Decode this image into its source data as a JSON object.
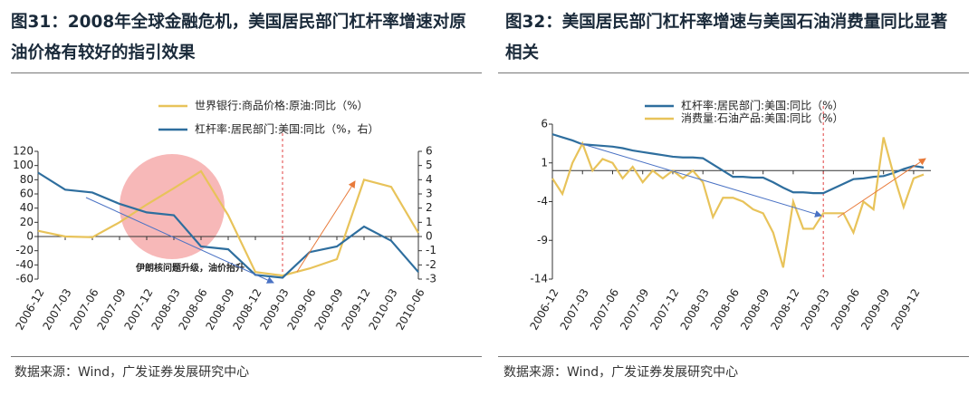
{
  "chart_data": [
    {
      "type": "line",
      "title": "图31：2008年全球金融危机，美国居民部门杠杆率增速对原油价格有较好的指引效果",
      "source": "数据来源：Wind，广发证券发展研究中心",
      "annotation": "伊朗核问题升级，油价抬升",
      "categories": [
        "2006-12",
        "2007-03",
        "2007-06",
        "2007-09",
        "2007-12",
        "2008-03",
        "2008-06",
        "2008-09",
        "2008-12",
        "2009-03",
        "2009-06",
        "2009-09",
        "2009-12",
        "2010-03",
        "2010-06"
      ],
      "series": [
        {
          "name": "世界银行:商品价格:原油:同比（%）",
          "color": "#e8c35a",
          "values": [
            8,
            0,
            -1,
            20,
            45,
            68,
            92,
            30,
            -50,
            -55,
            -45,
            -32,
            80,
            70,
            5
          ]
        },
        {
          "name": "杠杆率:居民部门:美国:同比（%，右）",
          "color": "#2e6e9e",
          "axis": "y2",
          "values": [
            4.5,
            3.3,
            3.1,
            2.3,
            1.7,
            1.5,
            -0.7,
            -0.9,
            -2.7,
            -2.9,
            -1.1,
            -0.7,
            0.7,
            -0.3,
            -2.5
          ]
        }
      ],
      "ylim": [
        -60,
        120
      ],
      "yticks": [
        -60,
        -40,
        -20,
        0,
        20,
        40,
        60,
        80,
        100,
        120
      ],
      "y2lim": [
        -3,
        6
      ],
      "y2ticks": [
        -3,
        -2,
        -1,
        0,
        1,
        2,
        3,
        4,
        5,
        6
      ]
    },
    {
      "type": "line",
      "title": "图32：美国居民部门杠杆率增速与美国石油消费量同比显著相关",
      "source": "数据来源：Wind，广发证券发展研究中心",
      "categories": [
        "2006-12",
        null,
        null,
        "2007-03",
        null,
        null,
        "2007-06",
        null,
        null,
        "2007-09",
        null,
        null,
        "2007-12",
        null,
        null,
        "2008-03",
        null,
        null,
        "2008-06",
        null,
        null,
        "2008-09",
        null,
        null,
        "2008-12",
        null,
        null,
        "2009-03",
        null,
        null,
        "2009-06",
        null,
        null,
        "2009-09",
        null,
        null,
        "2009-12",
        null
      ],
      "series": [
        {
          "name": "杠杆率:居民部门:美国:同比（%）",
          "color": "#2e6e9e",
          "values": [
            4.7,
            4.3,
            3.9,
            3.4,
            3.3,
            3.2,
            3.1,
            2.9,
            2.6,
            2.4,
            2.2,
            2.0,
            1.8,
            1.7,
            1.7,
            1.6,
            0.8,
            0,
            -0.8,
            -0.8,
            -0.9,
            -0.9,
            -1.5,
            -2.2,
            -2.8,
            -2.8,
            -2.9,
            -2.9,
            -2.3,
            -1.7,
            -1.1,
            -1.0,
            -0.8,
            -0.7,
            -0.3,
            0.2,
            0.6,
            0.4
          ]
        },
        {
          "name": "消费量:石油产品:美国:同比（%）",
          "color": "#e8c35a",
          "values": [
            -1,
            -3,
            1,
            3.5,
            0,
            1.5,
            1,
            -1,
            0.5,
            -1.5,
            0,
            -1,
            0,
            -1,
            0,
            -1.5,
            -6,
            -3.5,
            -3.5,
            -4,
            -5,
            -5.5,
            -8,
            -12.5,
            -4,
            -7.5,
            -7.5,
            -5.5,
            -5.5,
            -5.5,
            -8,
            -4,
            -5,
            4.3,
            -0.5,
            -4.7,
            -1,
            -0.5
          ]
        }
      ],
      "ylim": [
        -14,
        6
      ],
      "yticks": [
        -14,
        -9,
        -4,
        1,
        6
      ]
    }
  ]
}
